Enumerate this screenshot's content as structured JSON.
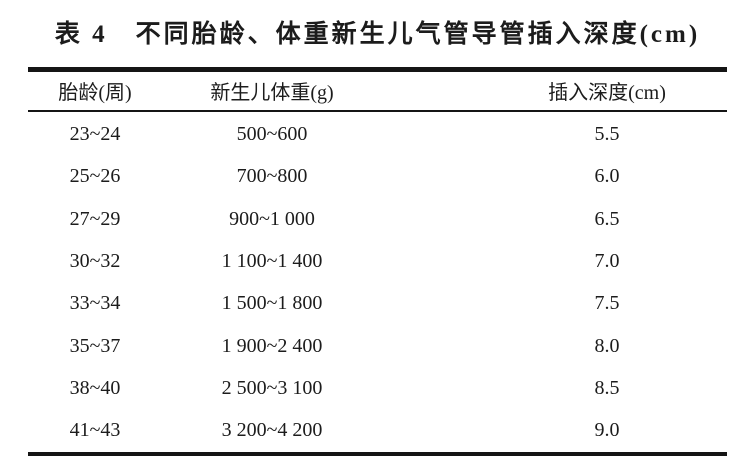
{
  "colors": {
    "background": "#ffffff",
    "text": "#1c1c1c",
    "rule": "#151515"
  },
  "table": {
    "title": "表 4　不同胎龄、体重新生儿气管导管插入深度(cm)",
    "columns": [
      "胎龄(周)",
      "新生儿体重(g)",
      "插入深度(cm)"
    ],
    "rows": [
      [
        "23~24",
        "500~600",
        "5.5"
      ],
      [
        "25~26",
        "700~800",
        "6.0"
      ],
      [
        "27~29",
        "900~1 000",
        "6.5"
      ],
      [
        "30~32",
        "1 100~1 400",
        "7.0"
      ],
      [
        "33~34",
        "1 500~1 800",
        "7.5"
      ],
      [
        "35~37",
        "1 900~2 400",
        "8.0"
      ],
      [
        "38~40",
        "2 500~3 100",
        "8.5"
      ],
      [
        "41~43",
        "3 200~4 200",
        "9.0"
      ]
    ]
  },
  "chart_data": {
    "type": "table",
    "title": "表 4 不同胎龄、体重新生儿气管导管插入深度(cm)",
    "columns": [
      "胎龄(周)",
      "新生儿体重(g)",
      "插入深度(cm)"
    ],
    "gestational_age_weeks": [
      "23~24",
      "25~26",
      "27~29",
      "30~32",
      "33~34",
      "35~37",
      "38~40",
      "41~43"
    ],
    "birth_weight_g": [
      "500~600",
      "700~800",
      "900~1 000",
      "1 100~1 400",
      "1 500~1 800",
      "1 900~2 400",
      "2 500~3 100",
      "3 200~4 200"
    ],
    "insertion_depth_cm": [
      5.5,
      6.0,
      6.5,
      7.0,
      7.5,
      8.0,
      8.5,
      9.0
    ]
  }
}
